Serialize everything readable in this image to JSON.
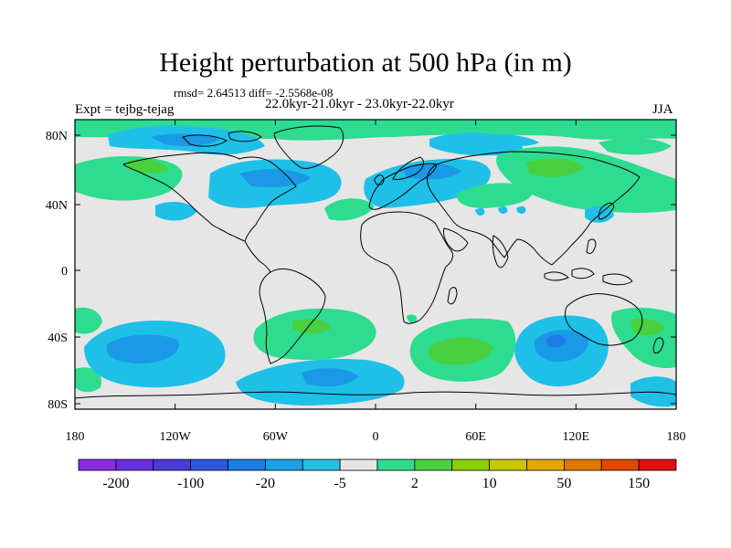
{
  "title": "Height perturbation at 500 hPa (in m)",
  "stats_line": "rmsd= 2.64513 diff= -2.5568e-08",
  "experiment_label": "Expt = tejbg-tejag",
  "period_label": "22.0kyr-21.0kyr - 23.0kyr-22.0kyr",
  "season_label": "JJA",
  "lat_ticks": [
    "80N",
    "40N",
    "0",
    "40S",
    "80S"
  ],
  "lon_ticks": [
    "180",
    "120W",
    "60W",
    "0",
    "60E",
    "120E",
    "180"
  ],
  "colorbar": {
    "labels": [
      "-200",
      "-100",
      "-20",
      "-5",
      "2",
      "10",
      "50",
      "150"
    ],
    "colors": [
      "#8a2be2",
      "#6a2ee0",
      "#4b3ad8",
      "#2f56e0",
      "#1c7de6",
      "#1aa0e6",
      "#22c1e6",
      "#e6e6e6",
      "#2edc90",
      "#48d040",
      "#8ad000",
      "#c8c800",
      "#e0a800",
      "#e07800",
      "#e04800",
      "#e01010"
    ]
  },
  "colors": {
    "ocean_bg": "#e6e6e6",
    "light_blue": "#1ec0e8",
    "mid_blue": "#1a9ae6",
    "dark_blue": "#1c7de6",
    "deep_blue": "#2f56e0",
    "green": "#2edc90",
    "lime": "#48d040"
  }
}
